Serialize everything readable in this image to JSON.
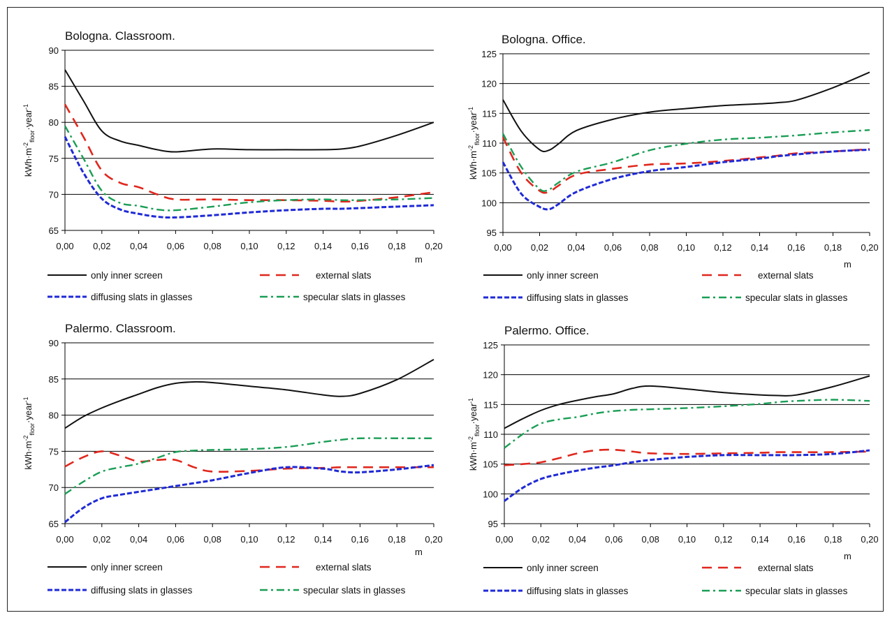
{
  "colors": {
    "only_inner_screen": "#111111",
    "external_slats": "#e0271d",
    "diffusing_slats": "#1f2ad6",
    "specular_slats": "#1a9e55",
    "grid": "#000000"
  },
  "legend_labels": {
    "only": "only inner screen",
    "external": "external slats",
    "diffusing": "diffusing slats in glasses",
    "specular": "specular slats in glasses"
  },
  "chart_data": [
    {
      "type": "line",
      "title": "Bologna. Classroom.",
      "xlabel": "m",
      "ylabel": "kWh·m⁻²floor·year⁻¹",
      "ylim": [
        65,
        90
      ],
      "yticks": [
        65,
        70,
        75,
        80,
        85,
        90
      ],
      "xlim": [
        0,
        0.2
      ],
      "xticks": [
        "0,00",
        "0,02",
        "0,04",
        "0,06",
        "0,08",
        "0,10",
        "0,12",
        "0,14",
        "0,16",
        "0,18",
        "0,20"
      ],
      "grid": "horizontal",
      "legend": "bottom",
      "x": [
        0,
        0.01,
        0.02,
        0.03,
        0.04,
        0.05,
        0.06,
        0.08,
        0.1,
        0.12,
        0.14,
        0.15,
        0.16,
        0.18,
        0.2
      ],
      "series": [
        {
          "name": "only inner screen",
          "key": "only",
          "values": [
            87.3,
            83,
            78.8,
            77.4,
            76.8,
            76.2,
            75.9,
            76.3,
            76.2,
            76.2,
            76.2,
            76.3,
            76.7,
            78.2,
            80.0
          ]
        },
        {
          "name": "external slats",
          "key": "external",
          "values": [
            82.5,
            78,
            73.3,
            71.6,
            71.0,
            70.0,
            69.3,
            69.3,
            69.2,
            69.2,
            69.1,
            69.0,
            69.1,
            69.6,
            70.3
          ]
        },
        {
          "name": "diffusing slats in glasses",
          "key": "diffusing",
          "values": [
            78.0,
            73,
            69.4,
            67.9,
            67.3,
            66.9,
            66.8,
            67.1,
            67.5,
            67.8,
            68.0,
            68.0,
            68.1,
            68.3,
            68.5
          ]
        },
        {
          "name": "specular slats in glasses",
          "key": "specular",
          "values": [
            79.5,
            75,
            70.5,
            68.8,
            68.4,
            67.9,
            67.8,
            68.3,
            68.9,
            69.2,
            69.3,
            69.2,
            69.2,
            69.3,
            69.5
          ]
        }
      ]
    },
    {
      "type": "line",
      "title": "Bologna. Office.",
      "xlabel": "m",
      "ylabel": "kWh·m⁻²floor·year⁻¹",
      "ylim": [
        95,
        125
      ],
      "yticks": [
        95,
        100,
        105,
        110,
        115,
        120,
        125
      ],
      "xlim": [
        0,
        0.2
      ],
      "xticks": [
        "0,00",
        "0,02",
        "0,04",
        "0,06",
        "0,08",
        "0,10",
        "0,12",
        "0,14",
        "0,16",
        "0,18",
        "0,20"
      ],
      "grid": "horizontal",
      "legend": "bottom",
      "x": [
        0,
        0.01,
        0.02,
        0.025,
        0.03,
        0.04,
        0.06,
        0.08,
        0.1,
        0.12,
        0.14,
        0.15,
        0.16,
        0.18,
        0.2
      ],
      "series": [
        {
          "name": "only inner screen",
          "key": "only",
          "values": [
            117.3,
            112,
            108.9,
            108.8,
            109.8,
            112.1,
            114.0,
            115.2,
            115.8,
            116.3,
            116.6,
            116.8,
            117.2,
            119.3,
            121.9
          ]
        },
        {
          "name": "external slats",
          "key": "external",
          "values": [
            111.0,
            105,
            102.0,
            101.8,
            102.8,
            104.7,
            105.7,
            106.4,
            106.6,
            107.0,
            107.6,
            107.9,
            108.3,
            108.6,
            109.0
          ]
        },
        {
          "name": "diffusing slats in glasses",
          "key": "diffusing",
          "values": [
            106.8,
            101.5,
            99.3,
            98.9,
            99.7,
            101.8,
            104.0,
            105.3,
            106.0,
            106.8,
            107.4,
            107.8,
            108.1,
            108.6,
            108.9
          ]
        },
        {
          "name": "specular slats in glasses",
          "key": "specular",
          "values": [
            111.6,
            106,
            102.3,
            102.2,
            103.3,
            105.2,
            106.8,
            108.8,
            109.9,
            110.6,
            110.9,
            111.1,
            111.3,
            111.8,
            112.2
          ]
        }
      ]
    },
    {
      "type": "line",
      "title": "Palermo. Classroom.",
      "xlabel": "m",
      "ylabel": "kWh·m⁻²floor·year⁻¹",
      "ylim": [
        65,
        90
      ],
      "yticks": [
        65,
        70,
        75,
        80,
        85,
        90
      ],
      "xlim": [
        0,
        0.2
      ],
      "xticks": [
        "0,00",
        "0,02",
        "0,04",
        "0,06",
        "0,08",
        "0,10",
        "0,12",
        "0,14",
        "0,16",
        "0,18",
        "0,20"
      ],
      "grid": "horizontal",
      "legend": "bottom",
      "x": [
        0,
        0.01,
        0.02,
        0.03,
        0.04,
        0.05,
        0.06,
        0.07,
        0.08,
        0.1,
        0.12,
        0.14,
        0.15,
        0.16,
        0.18,
        0.2
      ],
      "series": [
        {
          "name": "only inner screen",
          "key": "only",
          "values": [
            78.2,
            79.8,
            81.0,
            82.0,
            82.9,
            83.8,
            84.4,
            84.6,
            84.5,
            84.0,
            83.5,
            82.8,
            82.6,
            83.0,
            84.9,
            87.7
          ]
        },
        {
          "name": "external slats",
          "key": "external",
          "values": [
            72.9,
            74.2,
            75.0,
            74.4,
            73.6,
            73.8,
            73.8,
            72.8,
            72.2,
            72.3,
            72.6,
            72.7,
            72.8,
            72.8,
            72.8,
            72.8
          ]
        },
        {
          "name": "diffusing slats in glasses",
          "key": "diffusing",
          "values": [
            65.2,
            67.2,
            68.5,
            69.0,
            69.4,
            69.8,
            70.2,
            70.6,
            71.0,
            72.0,
            72.8,
            72.6,
            72.2,
            72.1,
            72.5,
            73.1
          ]
        },
        {
          "name": "specular slats in glasses",
          "key": "specular",
          "values": [
            69.1,
            70.8,
            72.2,
            72.8,
            73.3,
            74.1,
            74.9,
            75.1,
            75.2,
            75.3,
            75.6,
            76.3,
            76.6,
            76.8,
            76.8,
            76.8
          ]
        }
      ]
    },
    {
      "type": "line",
      "title": "Palermo. Office.",
      "xlabel": "m",
      "ylabel": "kWh·m⁻²floor·year⁻¹",
      "ylim": [
        95,
        125
      ],
      "yticks": [
        95,
        100,
        105,
        110,
        115,
        120,
        125
      ],
      "xlim": [
        0,
        0.2
      ],
      "xticks": [
        "0,00",
        "0,02",
        "0,04",
        "0,06",
        "0,08",
        "0,10",
        "0,12",
        "0,14",
        "0,16",
        "0,18",
        "0,20"
      ],
      "grid": "horizontal",
      "legend": "bottom",
      "x": [
        0,
        0.01,
        0.02,
        0.03,
        0.04,
        0.05,
        0.06,
        0.07,
        0.08,
        0.1,
        0.12,
        0.14,
        0.15,
        0.16,
        0.18,
        0.2
      ],
      "series": [
        {
          "name": "only inner screen",
          "key": "only",
          "values": [
            111.0,
            112.6,
            114.0,
            115.0,
            115.7,
            116.3,
            116.8,
            117.7,
            118.1,
            117.6,
            117.0,
            116.6,
            116.5,
            116.6,
            118.0,
            119.8
          ]
        },
        {
          "name": "external slats",
          "key": "external",
          "values": [
            104.8,
            105.0,
            105.3,
            106.0,
            106.8,
            107.3,
            107.4,
            107.1,
            106.8,
            106.7,
            106.8,
            106.9,
            107.0,
            107.0,
            107.0,
            107.1
          ]
        },
        {
          "name": "diffusing slats in glasses",
          "key": "diffusing",
          "values": [
            98.8,
            101.0,
            102.5,
            103.3,
            103.9,
            104.4,
            104.8,
            105.3,
            105.7,
            106.2,
            106.5,
            106.5,
            106.5,
            106.5,
            106.7,
            107.3
          ]
        },
        {
          "name": "specular slats in glasses",
          "key": "specular",
          "values": [
            107.7,
            110.0,
            111.8,
            112.5,
            112.9,
            113.5,
            113.9,
            114.1,
            114.2,
            114.4,
            114.7,
            115.1,
            115.4,
            115.6,
            115.8,
            115.6
          ]
        }
      ]
    }
  ]
}
